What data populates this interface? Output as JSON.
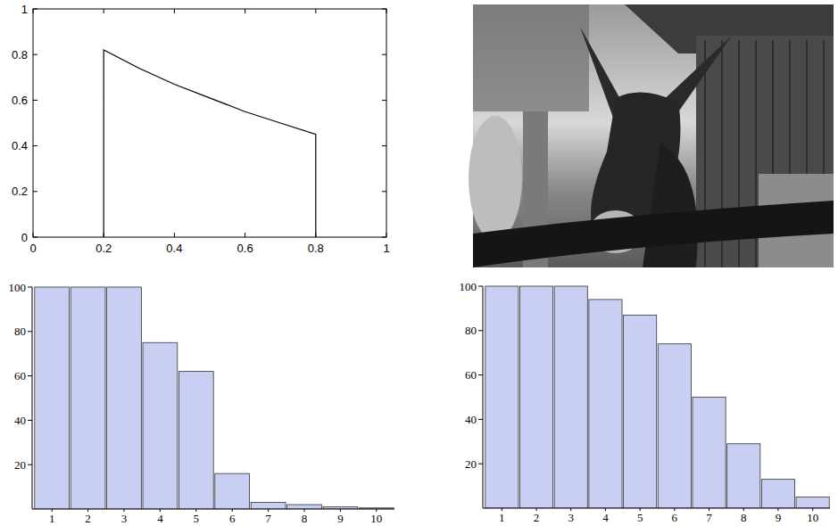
{
  "chart_data": [
    {
      "type": "line",
      "x": [
        0.2,
        0.2,
        0.3,
        0.4,
        0.5,
        0.6,
        0.7,
        0.8,
        0.8
      ],
      "values": [
        0,
        0.82,
        0.74,
        0.67,
        0.61,
        0.55,
        0.5,
        0.45,
        0
      ],
      "xlim": [
        0,
        1
      ],
      "ylim": [
        0,
        1
      ],
      "xticks": [
        0,
        0.2,
        0.4,
        0.6,
        0.8,
        1
      ],
      "yticks": [
        0,
        0.2,
        0.4,
        0.6,
        0.8,
        1
      ],
      "color": "#000000",
      "grid": false
    },
    {
      "type": "bar",
      "categories": [
        "1",
        "2",
        "3",
        "4",
        "5",
        "6",
        "7",
        "8",
        "9",
        "10"
      ],
      "values": [
        100,
        100,
        100,
        75,
        62,
        16,
        3,
        2,
        1,
        0.5
      ],
      "ylim": [
        0,
        100
      ],
      "yticks": [
        20,
        40,
        60,
        80,
        100
      ],
      "color": "#c9cff3",
      "grid": false
    },
    {
      "type": "bar",
      "categories": [
        "1",
        "2",
        "3",
        "4",
        "5",
        "6",
        "7",
        "8",
        "9",
        "10"
      ],
      "values": [
        100,
        100,
        100,
        94,
        87,
        74,
        50,
        29,
        13,
        5
      ],
      "ylim": [
        0,
        100
      ],
      "yticks": [
        20,
        40,
        60,
        80,
        100
      ],
      "color": "#c9cff3",
      "grid": false
    }
  ]
}
